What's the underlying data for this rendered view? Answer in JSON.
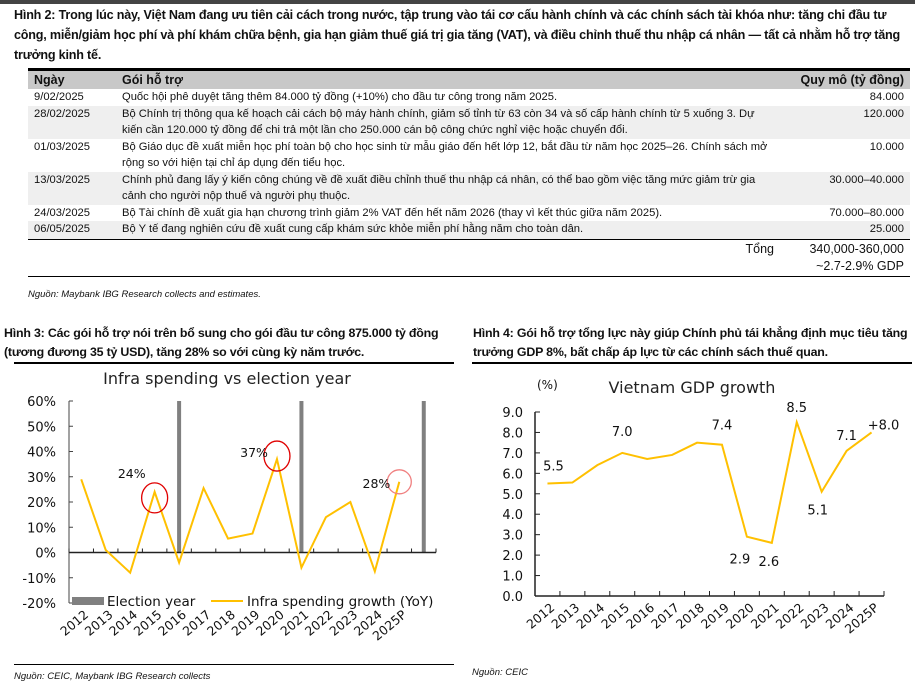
{
  "fig2": {
    "caption": "Hình 2: Trong lúc này, Việt Nam đang ưu tiên cải cách trong nước, tập trung vào tái cơ cấu hành chính và các chính sách tài khóa như: tăng chi đầu tư công, miễn/giảm học phí và phí khám chữa bệnh, gia hạn giảm thuế giá trị gia tăng (VAT), và điều chỉnh thuế thu nhập cá nhân — tất cả nhằm hỗ trợ tăng trưởng kinh tế.",
    "headers": [
      "Ngày",
      "Gói hỗ trợ",
      "Quy mô (tỷ đồng)"
    ],
    "rows": [
      [
        "9/02/2025",
        "Quốc hội phê duyệt tăng thêm 84.000 tỷ đồng (+10%) cho đầu tư công trong năm 2025.",
        "84.000"
      ],
      [
        "28/02/2025",
        "Bộ Chính trị thông qua kế hoạch cải cách bộ máy hành chính, giảm số tỉnh từ 63 còn 34 và số cấp hành chính từ 5 xuống 3. Dự kiến cần 120.000 tỷ đồng để chi trả một lần cho 250.000 cán bộ công chức nghỉ việc hoặc chuyển đổi.",
        "120.000"
      ],
      [
        "01/03/2025",
        "Bộ Giáo dục đề xuất miễn học phí toàn bộ cho học sinh từ mẫu giáo đến hết lớp 12, bắt đầu từ năm học 2025–26. Chính sách mở rộng so với hiện tại chỉ áp dụng đến tiểu học.",
        "10.000"
      ],
      [
        "13/03/2025",
        "Chính phủ đang lấy ý kiến công chúng về đề xuất điều chỉnh thuế thu nhập cá nhân, có thể bao gồm việc tăng mức giảm trừ gia cảnh cho người nộp thuế và người phụ thuộc.",
        "30.000–40.000"
      ],
      [
        "24/03/2025",
        "Bộ Tài chính đề xuất gia hạn chương trình giảm 2% VAT đến hết năm 2026 (thay vì kết thúc giữa năm 2025).",
        "70.000–80.000"
      ],
      [
        "06/05/2025",
        "Bộ Y tế đang nghiên cứu đề xuất cung cấp khám sức khỏe miễn phí hằng năm cho toàn dân.",
        "25.000"
      ]
    ],
    "total_label": "Tổng",
    "total_value": "340,000-360,000",
    "total_gdp": "~2.7-2.9% GDP",
    "source": "Nguồn: Maybank IBG Research collects and estimates."
  },
  "fig3": {
    "caption": "Hình 3: Các gói hỗ trợ nói trên bổ sung cho gói đầu tư công 875.000 tỷ đồng (tương đương 35 tỷ USD), tăng 28% so với cùng kỳ năm trước.",
    "source": "Nguồn: CEIC, Maybank IBG Research collects"
  },
  "fig4": {
    "caption": "Hình 4: Gói hỗ trợ tổng lực này giúp Chính phủ tái khẳng định mục tiêu tăng trưởng GDP 8%, bất chấp áp lực từ các chính sách thuế quan.",
    "source": "Nguồn: CEIC"
  },
  "chart_data": [
    {
      "type": "line",
      "title": "Infra spending vs election year",
      "categories": [
        "2012",
        "2013",
        "2014",
        "2015",
        "2016",
        "2017",
        "2018",
        "2019",
        "2020",
        "2021",
        "2022",
        "2023",
        "2024",
        "2025P"
      ],
      "series": [
        {
          "name": "Infra spending growth (YoY)",
          "values": [
            29,
            1,
            -8,
            24,
            -4,
            25.5,
            5.5,
            7.5,
            37,
            -6,
            14,
            20,
            -7.5,
            28
          ],
          "color": "#FFC000"
        },
        {
          "name": "Election year",
          "type": "bar",
          "years": [
            "2016",
            "2021",
            "2026"
          ],
          "color": "#808080"
        }
      ],
      "annotations": [
        {
          "x": "2015",
          "label": "24%"
        },
        {
          "x": "2020",
          "label": "37%"
        },
        {
          "x": "2025P",
          "label": "28%"
        }
      ],
      "ylim": [
        -20,
        60
      ],
      "yticks": [
        "-20%",
        "-10%",
        "0%",
        "10%",
        "20%",
        "30%",
        "40%",
        "50%",
        "60%"
      ],
      "legend": "bottom"
    },
    {
      "type": "line",
      "title": "Vietnam GDP growth",
      "ylabel": "(%)",
      "categories": [
        "2012",
        "2013",
        "2014",
        "2015",
        "2016",
        "2017",
        "2018",
        "2019",
        "2020",
        "2021",
        "2022",
        "2023",
        "2024",
        "2025P"
      ],
      "series": [
        {
          "name": "GDP growth",
          "values": [
            5.5,
            5.55,
            6.4,
            7.0,
            6.7,
            6.9,
            7.5,
            7.4,
            2.9,
            2.6,
            8.5,
            5.1,
            7.1,
            8.0
          ],
          "color": "#FFC000"
        }
      ],
      "data_labels": [
        {
          "x": "2012",
          "label": "5.5"
        },
        {
          "x": "2015",
          "label": "7.0"
        },
        {
          "x": "2019",
          "label": "7.4"
        },
        {
          "x": "2020",
          "label": "2.9"
        },
        {
          "x": "2021",
          "label": "2.6"
        },
        {
          "x": "2022",
          "label": "8.5"
        },
        {
          "x": "2023",
          "label": "5.1"
        },
        {
          "x": "2024",
          "label": "7.1"
        },
        {
          "x": "2025P",
          "label": "+8.0"
        }
      ],
      "ylim": [
        0,
        9
      ],
      "yticks": [
        "0.0",
        "1.0",
        "2.0",
        "3.0",
        "4.0",
        "5.0",
        "6.0",
        "7.0",
        "8.0",
        "9.0"
      ]
    }
  ]
}
